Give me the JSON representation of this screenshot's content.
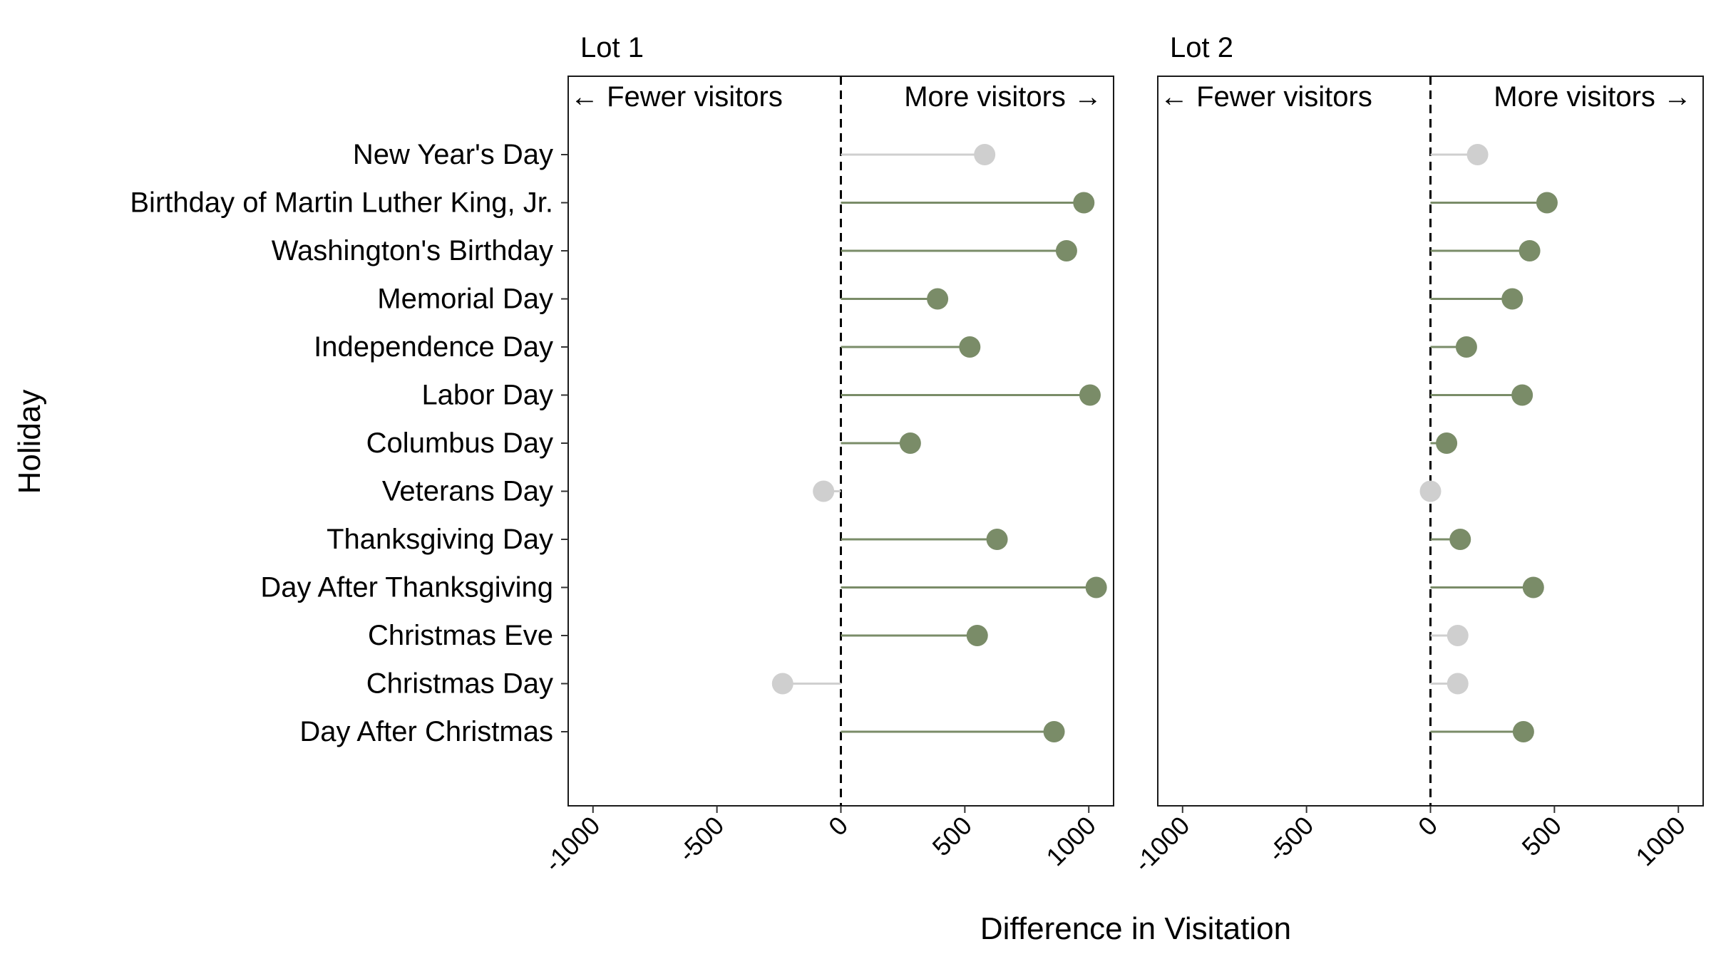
{
  "chart_data": {
    "type": "lollipop",
    "ylabel": "Holiday",
    "xlabel": "Difference in Visitation",
    "xlim": [
      -1100,
      1100
    ],
    "xticks": [
      -1000,
      -500,
      0,
      500,
      1000
    ],
    "xtick_labels": [
      "-1000",
      "-500",
      "0",
      "500",
      "1000"
    ],
    "hint_left": "← Fewer visitors",
    "hint_right": "More visitors →",
    "colors": {
      "significant": "#7a8c68",
      "not_significant": "#cfcfcf"
    },
    "categories": [
      "New Year's Day",
      "Birthday of Martin Luther King, Jr.",
      "Washington's Birthday",
      "Memorial Day",
      "Independence Day",
      "Labor Day",
      "Columbus Day",
      "Veterans Day",
      "Thanksgiving Day",
      "Day After Thanksgiving",
      "Christmas Eve",
      "Christmas Day",
      "Day After Christmas"
    ],
    "panels": [
      {
        "title": "Lot 1",
        "values": [
          580,
          980,
          910,
          390,
          520,
          1005,
          280,
          -70,
          630,
          1030,
          550,
          -235,
          860
        ],
        "significant": [
          false,
          true,
          true,
          true,
          true,
          true,
          true,
          false,
          true,
          true,
          true,
          false,
          true
        ]
      },
      {
        "title": "Lot 2",
        "values": [
          190,
          470,
          400,
          330,
          145,
          370,
          65,
          0,
          120,
          415,
          110,
          110,
          375
        ],
        "significant": [
          false,
          true,
          true,
          true,
          true,
          true,
          true,
          false,
          true,
          true,
          false,
          false,
          true
        ]
      }
    ]
  }
}
